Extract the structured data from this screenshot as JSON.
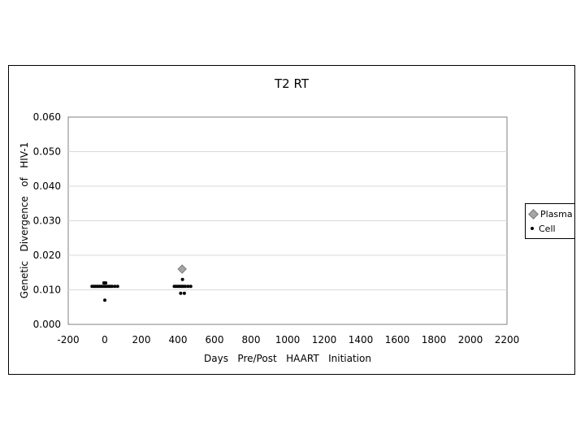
{
  "chart_data": {
    "type": "scatter",
    "title": "T2  RT",
    "xlabel": "Days   Pre/Post   HAART   Initiation",
    "ylabel": "Genetic   Divergence   of   HIV-1",
    "xlim": [
      -200,
      2200
    ],
    "ylim": [
      0.0,
      0.06
    ],
    "x_ticks": [
      "-200",
      "0",
      "200",
      "400",
      "600",
      "800",
      "1000",
      "1200",
      "1400",
      "1600",
      "1800",
      "2000",
      "2200"
    ],
    "x_tick_values": [
      -200,
      0,
      200,
      400,
      600,
      800,
      1000,
      1200,
      1400,
      1600,
      1800,
      2000,
      2200
    ],
    "y_ticks": [
      "0.000",
      "0.010",
      "0.020",
      "0.030",
      "0.040",
      "0.050",
      "0.060"
    ],
    "y_tick_values": [
      0.0,
      0.01,
      0.02,
      0.03,
      0.04,
      0.05,
      0.06
    ],
    "grid": "horizontal",
    "legend_position": "right",
    "series": [
      {
        "name": "Plasma",
        "marker": "diamond",
        "color": "#a6a6a6",
        "points": [
          [
            423,
            0.016
          ]
        ]
      },
      {
        "name": "Cell",
        "marker": "dot",
        "color": "#000000",
        "points": [
          [
            -70,
            0.011
          ],
          [
            -60,
            0.011
          ],
          [
            -50,
            0.011
          ],
          [
            -40,
            0.011
          ],
          [
            -30,
            0.011
          ],
          [
            -20,
            0.011
          ],
          [
            -10,
            0.011
          ],
          [
            0,
            0.011
          ],
          [
            10,
            0.011
          ],
          [
            20,
            0.011
          ],
          [
            30,
            0.011
          ],
          [
            40,
            0.011
          ],
          [
            55,
            0.011
          ],
          [
            70,
            0.011
          ],
          [
            -5,
            0.012
          ],
          [
            5,
            0.012
          ],
          [
            0,
            0.007
          ],
          [
            380,
            0.011
          ],
          [
            390,
            0.011
          ],
          [
            400,
            0.011
          ],
          [
            410,
            0.011
          ],
          [
            420,
            0.011
          ],
          [
            430,
            0.011
          ],
          [
            440,
            0.011
          ],
          [
            455,
            0.011
          ],
          [
            470,
            0.011
          ],
          [
            425,
            0.013
          ],
          [
            415,
            0.009
          ],
          [
            435,
            0.009
          ]
        ]
      }
    ]
  }
}
